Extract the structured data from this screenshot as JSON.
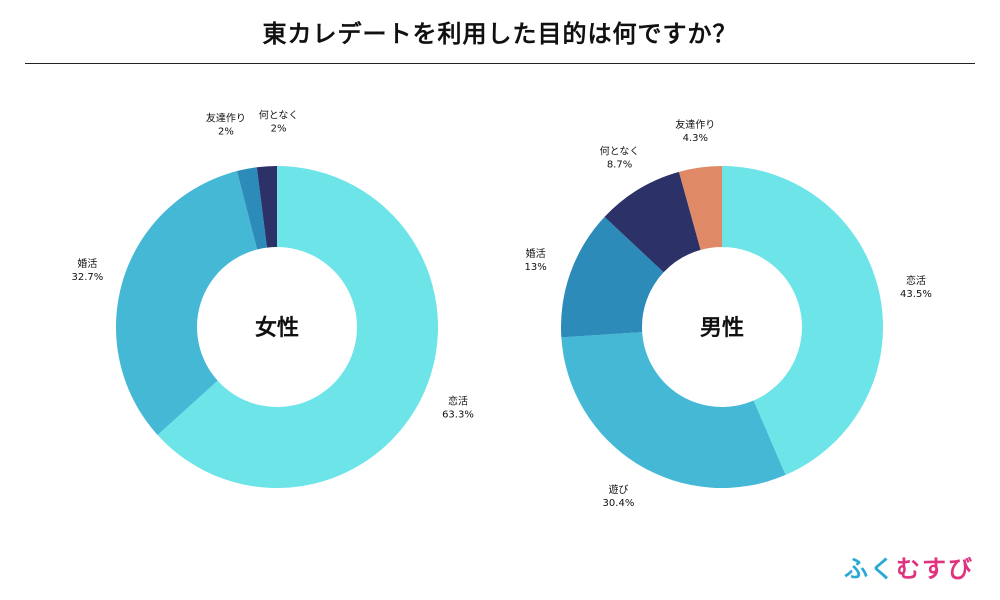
{
  "title": "東カレデートを利用した目的は何ですか？",
  "brand": {
    "text": "ふくむすび",
    "colors": [
      "#2aa9d6",
      "#2aa9d6",
      "#e0337f",
      "#e0337f",
      "#e0337f"
    ]
  },
  "chart_data": [
    {
      "type": "pie",
      "subtype": "donut",
      "center_label": "女性",
      "slices": [
        {
          "label": "恋活",
          "value": 63.3,
          "display": "63.3%",
          "color": "#6ce4e8"
        },
        {
          "label": "婚活",
          "value": 32.7,
          "display": "32.7%",
          "color": "#45b8d6"
        },
        {
          "label": "友達作り",
          "value": 2,
          "display": "2%",
          "color": "#2d8bb9"
        },
        {
          "label": "何となく",
          "value": 2,
          "display": "2%",
          "color": "#2c3168"
        }
      ]
    },
    {
      "type": "pie",
      "subtype": "donut",
      "center_label": "男性",
      "slices": [
        {
          "label": "恋活",
          "value": 43.5,
          "display": "43.5%",
          "color": "#6ce4e8"
        },
        {
          "label": "遊び",
          "value": 30.4,
          "display": "30.4%",
          "color": "#45b8d6"
        },
        {
          "label": "婚活",
          "value": 13,
          "display": "13%",
          "color": "#2d8bb9"
        },
        {
          "label": "何となく",
          "value": 8.7,
          "display": "8.7%",
          "color": "#2c3168"
        },
        {
          "label": "友達作り",
          "value": 4.3,
          "display": "4.3%",
          "color": "#e08966"
        }
      ]
    }
  ]
}
